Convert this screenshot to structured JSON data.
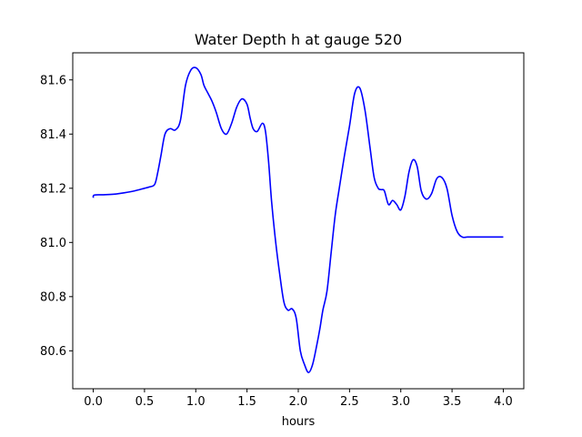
{
  "chart_data": {
    "type": "line",
    "title": "Water Depth h at gauge 520",
    "xlabel": "hours",
    "ylabel": "",
    "xlim": [
      -0.2,
      4.2
    ],
    "ylim": [
      80.46,
      81.7
    ],
    "xticks": [
      0.0,
      0.5,
      1.0,
      1.5,
      2.0,
      2.5,
      3.0,
      3.5,
      4.0
    ],
    "xtick_labels": [
      "0.0",
      "0.5",
      "1.0",
      "1.5",
      "2.0",
      "2.5",
      "3.0",
      "3.5",
      "4.0"
    ],
    "yticks": [
      80.6,
      80.8,
      81.0,
      81.2,
      81.4,
      81.6
    ],
    "ytick_labels": [
      "80.6",
      "80.8",
      "81.0",
      "81.2",
      "81.4",
      "81.6"
    ],
    "grid": false,
    "series": [
      {
        "color": "#0000ff",
        "x": [
          0.0,
          0.01,
          0.1,
          0.2,
          0.3,
          0.4,
          0.5,
          0.55,
          0.6,
          0.63,
          0.66,
          0.7,
          0.75,
          0.8,
          0.85,
          0.9,
          0.95,
          1.0,
          1.05,
          1.08,
          1.12,
          1.16,
          1.2,
          1.25,
          1.3,
          1.35,
          1.4,
          1.45,
          1.5,
          1.53,
          1.56,
          1.6,
          1.65,
          1.68,
          1.71,
          1.74,
          1.78,
          1.82,
          1.86,
          1.9,
          1.94,
          1.98,
          2.02,
          2.06,
          2.1,
          2.14,
          2.18,
          2.21,
          2.24,
          2.28,
          2.32,
          2.36,
          2.4,
          2.45,
          2.5,
          2.55,
          2.6,
          2.65,
          2.7,
          2.74,
          2.78,
          2.81,
          2.84,
          2.88,
          2.92,
          2.96,
          3.0,
          3.04,
          3.08,
          3.12,
          3.16,
          3.2,
          3.25,
          3.3,
          3.35,
          3.4,
          3.45,
          3.5,
          3.55,
          3.6,
          3.65,
          3.7,
          3.75,
          3.8,
          3.85,
          3.9,
          3.95,
          4.0
        ],
        "y": [
          81.165,
          81.175,
          81.176,
          81.178,
          81.183,
          81.19,
          81.2,
          81.205,
          81.215,
          81.26,
          81.32,
          81.4,
          81.42,
          81.415,
          81.45,
          81.58,
          81.635,
          81.645,
          81.62,
          81.58,
          81.55,
          81.52,
          81.48,
          81.42,
          81.4,
          81.44,
          81.5,
          81.53,
          81.51,
          81.46,
          81.42,
          81.41,
          81.44,
          81.41,
          81.3,
          81.15,
          81.0,
          80.88,
          80.78,
          80.75,
          80.755,
          80.72,
          80.6,
          80.55,
          80.52,
          80.55,
          80.62,
          80.68,
          80.75,
          80.82,
          80.96,
          81.1,
          81.2,
          81.32,
          81.43,
          81.55,
          81.57,
          81.49,
          81.35,
          81.24,
          81.2,
          81.195,
          81.19,
          81.14,
          81.155,
          81.14,
          81.12,
          81.17,
          81.26,
          81.305,
          81.28,
          81.19,
          81.16,
          81.18,
          81.235,
          81.24,
          81.2,
          81.1,
          81.04,
          81.02,
          81.02,
          81.02,
          81.02,
          81.02,
          81.02,
          81.02,
          81.02,
          81.02
        ]
      }
    ]
  }
}
